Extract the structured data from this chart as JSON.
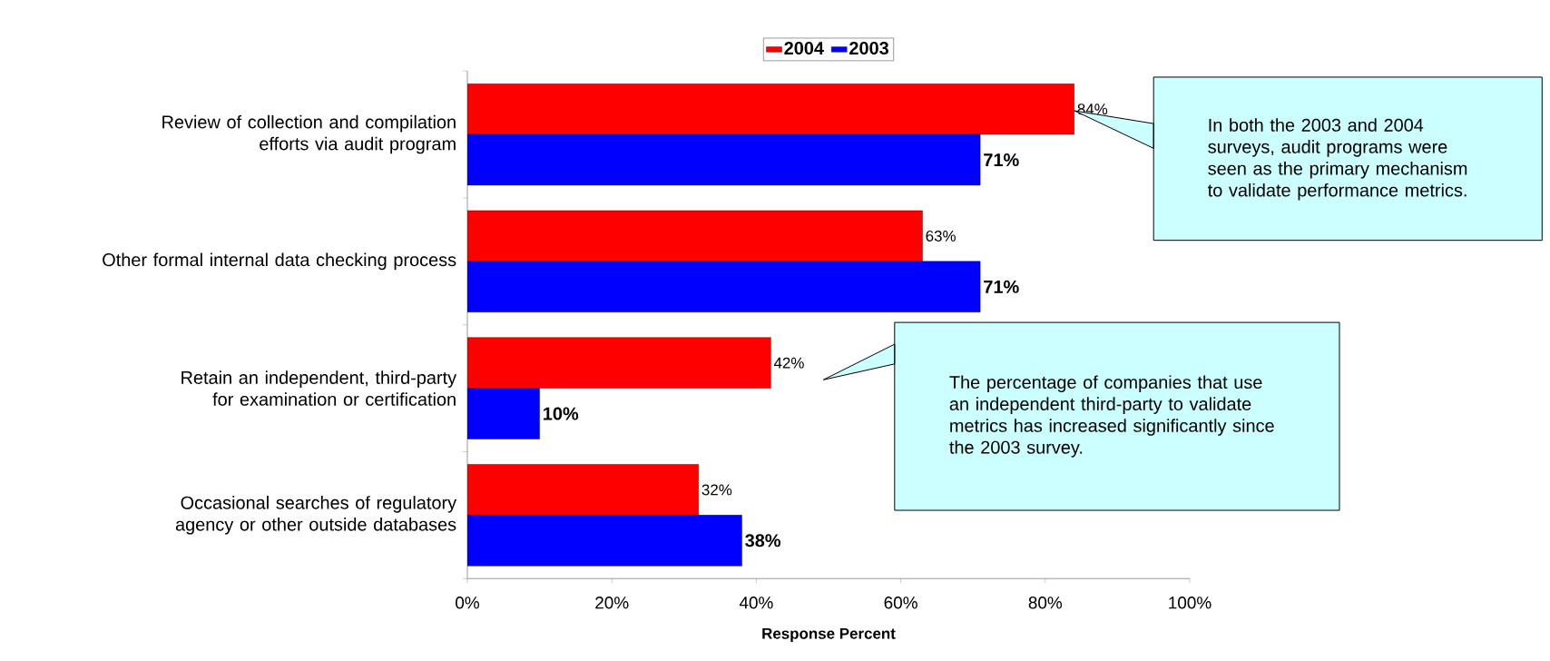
{
  "chart_data": {
    "type": "bar",
    "orientation": "horizontal",
    "xlabel": "Response Percent",
    "categories": [
      "Review of collection and compilation efforts via audit program",
      "Other formal internal data checking process",
      "Retain an independent, third-party for examination or certification",
      "Occasional searches of regulatory agency or other outside databases"
    ],
    "series": [
      {
        "name": "2004",
        "color": "#ff0000",
        "values": [
          84,
          63,
          42,
          32
        ],
        "value_labels": [
          "84%",
          "63%",
          "42%",
          "32%"
        ]
      },
      {
        "name": "2003",
        "color": "#0000ff",
        "values": [
          71,
          71,
          10,
          38
        ],
        "value_labels": [
          "71%",
          "71%",
          "10%",
          "38%"
        ]
      }
    ],
    "xlim": [
      0,
      100
    ],
    "xticks": [
      {
        "value": 0,
        "label": "0%"
      },
      {
        "value": 20,
        "label": "20%"
      },
      {
        "value": 40,
        "label": "40%"
      },
      {
        "value": 60,
        "label": "60%"
      },
      {
        "value": 80,
        "label": "80%"
      },
      {
        "value": 100,
        "label": "100%"
      }
    ],
    "legend": "top",
    "grid": false,
    "annotations": [
      "In both the 2003 and 2004 surveys, audit programs were seen as the primary mechanism to validate performance metrics.",
      "The percentage of companies that use an independent third-party to validate metrics has increased significantly since the 2003 survey."
    ]
  }
}
